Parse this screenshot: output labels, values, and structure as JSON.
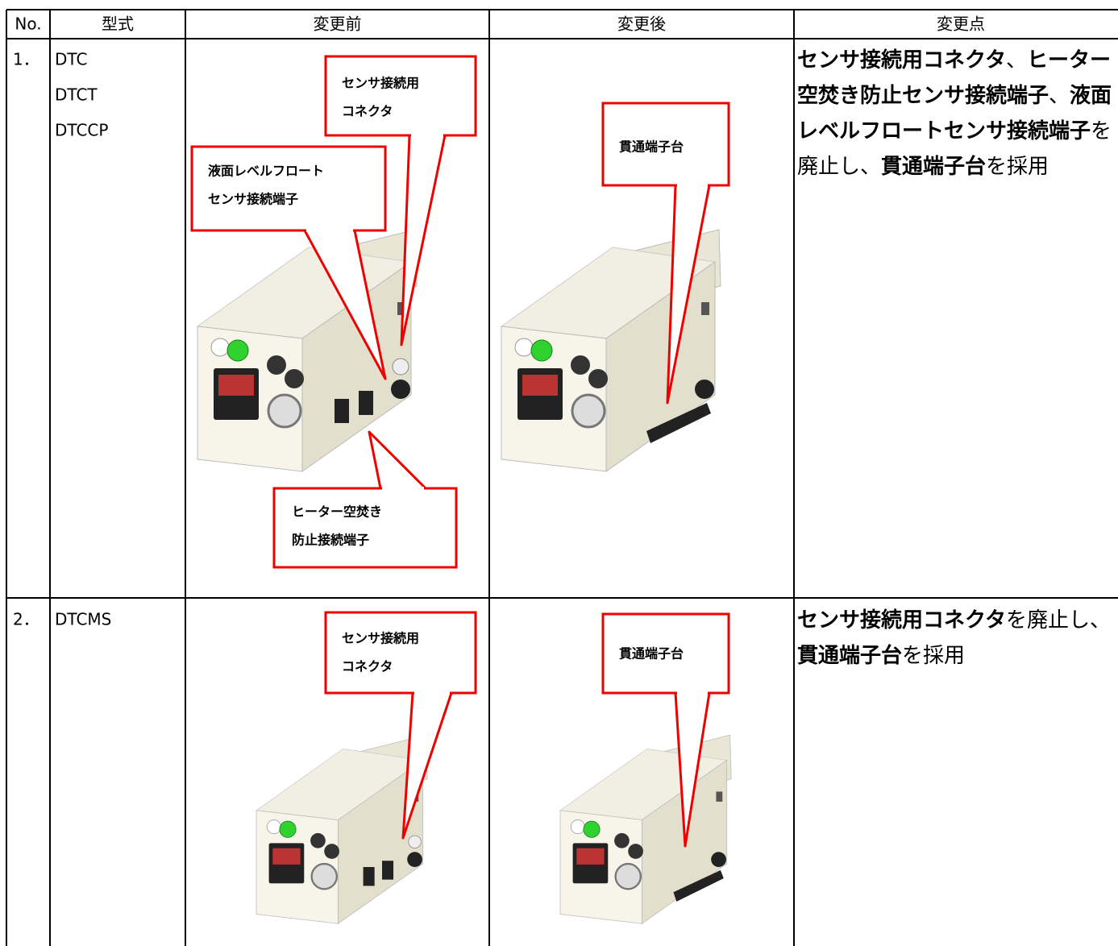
{
  "header": {
    "columns": [
      "No.",
      "型式",
      "変更前",
      "変更後",
      "変更点"
    ]
  },
  "table": {
    "rows": [
      {
        "no": "1．",
        "models": [
          "DTC",
          "DTCT",
          "DTCCP"
        ],
        "before_callouts": [
          {
            "lines": [
              "センサ接続用",
              "コネクタ"
            ]
          },
          {
            "lines": [
              "液面レベルフロート",
              "センサ接続端子"
            ]
          },
          {
            "lines": [
              "ヒーター空焚き",
              "防止接続端子"
            ]
          }
        ],
        "after_callouts": [
          {
            "lines": [
              "貫通端子台"
            ]
          }
        ],
        "change": [
          {
            "text": "センサ接続用コネクタ",
            "bold": true
          },
          {
            "text": "、",
            "bold": false
          },
          {
            "text": "ヒーター空焚き防止センサ接続端子",
            "bold": true
          },
          {
            "text": "、",
            "bold": false
          },
          {
            "text": "液面レベルフロートセンサ接続端子",
            "bold": true
          },
          {
            "text": "を廃止し、",
            "bold": false
          },
          {
            "text": "貫通端子台",
            "bold": true
          },
          {
            "text": "を採用",
            "bold": false
          }
        ]
      },
      {
        "no": "2．",
        "models": [
          "DTCMS"
        ],
        "before_callouts": [
          {
            "lines": [
              "センサ接続用",
              "コネクタ"
            ]
          }
        ],
        "after_callouts": [
          {
            "lines": [
              "貫通端子台"
            ]
          }
        ],
        "change": [
          {
            "text": "センサ接続用コネクタ",
            "bold": true
          },
          {
            "text": "を廃止し、",
            "bold": false
          },
          {
            "text": "貫通端子台",
            "bold": true
          },
          {
            "text": "を採用",
            "bold": false
          }
        ]
      }
    ]
  }
}
